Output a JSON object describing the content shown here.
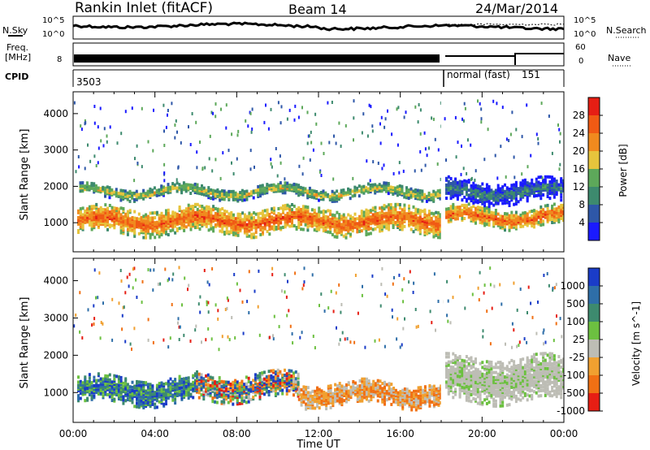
{
  "header": {
    "title": "Rankin Inlet (fitACF)",
    "beam": "Beam 14",
    "date": "24/Mar/2014"
  },
  "top_panels": {
    "nsky_label": "N.Sky",
    "nsky_tick_hi": "10^5",
    "nsky_tick_lo": "10^0",
    "nsearch_label": "N.Search",
    "nsearch_tick_hi": "10^5",
    "nsearch_tick_lo": "10^0",
    "freq_label": "Freq.",
    "freq_unit": "[MHz]",
    "freq_tick": "8",
    "nave_label": "Nave",
    "nave_tick_hi": "60",
    "nave_tick_lo": "0",
    "cpid_label": "CPID",
    "cpid_value_1": "3503",
    "cpid_mode_2": "normal (fast)",
    "cpid_value_2": "151"
  },
  "colors": {
    "power_scale": [
      "#1a1aff",
      "#2e57a8",
      "#3d8a6e",
      "#5da85a",
      "#e6c43c",
      "#f08a1e",
      "#f05a14",
      "#e61e14"
    ],
    "velocity_scale": [
      "#1a3cc8",
      "#2e6ea8",
      "#3d8a6e",
      "#6cc040",
      "#bdbdb5",
      "#f0a030",
      "#f07014",
      "#e61e14"
    ]
  },
  "chart_data": [
    {
      "type": "heatmap",
      "name": "power",
      "xlabel": "",
      "ylabel": "Slant Range [km]",
      "x_ticks": [
        "00:00",
        "04:00",
        "08:00",
        "12:00",
        "16:00",
        "20:00",
        "00:00"
      ],
      "y_ticks": [
        "1000",
        "2000",
        "3000",
        "4000"
      ],
      "ylim": [
        200,
        4600
      ],
      "colorbar_label": "Power [dB]",
      "colorbar_ticks": [
        "4",
        "8",
        "12",
        "16",
        "20",
        "24",
        "28"
      ],
      "note_bands": [
        {
          "time_start_h": 0.2,
          "time_end_h": 18.0,
          "range_center_km": 1100,
          "range_halfwidth_km": 350,
          "level": "high"
        },
        {
          "time_start_h": 0.3,
          "time_end_h": 18.0,
          "range_center_km": 1900,
          "range_halfwidth_km": 150,
          "level": "mid"
        },
        {
          "time_start_h": 18.2,
          "time_end_h": 24.0,
          "range_center_km": 1200,
          "range_halfwidth_km": 250,
          "level": "high"
        },
        {
          "time_start_h": 18.2,
          "time_end_h": 24.0,
          "range_center_km": 1900,
          "range_halfwidth_km": 300,
          "level": "low"
        }
      ]
    },
    {
      "type": "heatmap",
      "name": "velocity",
      "xlabel": "Time UT",
      "ylabel": "Slant Range [km]",
      "x_ticks": [
        "00:00",
        "04:00",
        "08:00",
        "12:00",
        "16:00",
        "20:00",
        "00:00"
      ],
      "y_ticks": [
        "1000",
        "2000",
        "3000",
        "4000"
      ],
      "ylim": [
        200,
        4600
      ],
      "colorbar_label": "Velocity [m s^-1]",
      "colorbar_ticks": [
        "1000",
        "500",
        "100",
        "25",
        "-25",
        "-100",
        "-500",
        "-1000"
      ],
      "note_bands": [
        {
          "time_start_h": 0.2,
          "time_end_h": 6.0,
          "range_center_km": 1100,
          "range_halfwidth_km": 350,
          "level": "positive"
        },
        {
          "time_start_h": 6.0,
          "time_end_h": 11.0,
          "range_center_km": 1200,
          "range_halfwidth_km": 350,
          "level": "mixed"
        },
        {
          "time_start_h": 11.0,
          "time_end_h": 18.0,
          "range_center_km": 1000,
          "range_halfwidth_km": 300,
          "level": "negative"
        },
        {
          "time_start_h": 18.2,
          "time_end_h": 24.0,
          "range_center_km": 1400,
          "range_halfwidth_km": 600,
          "level": "near-zero"
        }
      ]
    }
  ]
}
